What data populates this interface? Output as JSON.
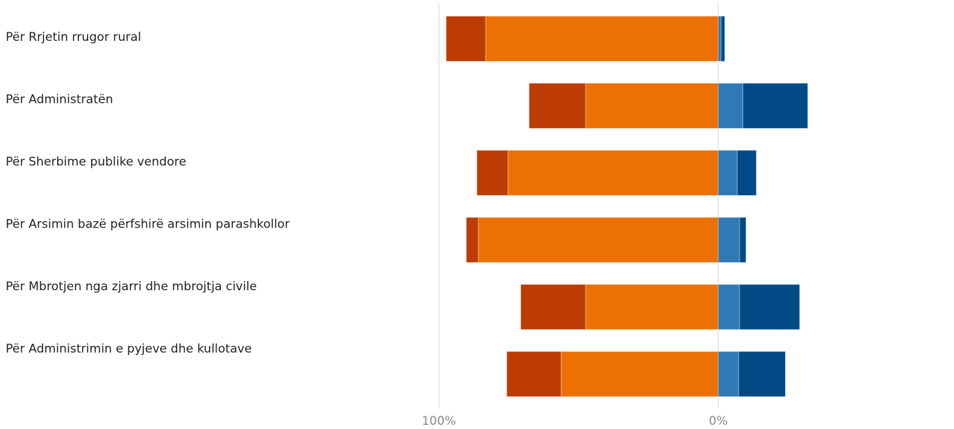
{
  "chart_data": {
    "type": "diverging-bar",
    "categories": [
      "Për Rrjetin rrugor rural",
      "Për Administratën",
      "Për Sherbime publike vendore",
      "Për Arsimin bazë përfshirë arsimin parashkollor",
      "Për Mbrotjen nga zjarri dhe mbrojtja civile",
      "Për Administrimin e pyjeve dhe kullotave"
    ],
    "series": [
      {
        "color": "#ec7004",
        "values": [
          83.3,
          47.5,
          75.3,
          85.9,
          47.5,
          56.3
        ]
      },
      {
        "color": "#bc3c04",
        "values": [
          14.1,
          20.2,
          11.1,
          4.3,
          23.2,
          19.4
        ]
      },
      {
        "color": "#2f79b4",
        "values": [
          -1,
          -8.8,
          -6.8,
          -7.6,
          -7.6,
          -7.3
        ]
      },
      {
        "color": "#024a86",
        "values": [
          -1.3,
          -23.2,
          -6.8,
          -2.3,
          -21.5,
          -16.7
        ]
      }
    ],
    "xlim": [
      100,
      -84
    ],
    "xticks": [
      {
        "value": 100,
        "label": "100%"
      },
      {
        "value": 0,
        "label": "0%"
      }
    ],
    "grid": true
  }
}
